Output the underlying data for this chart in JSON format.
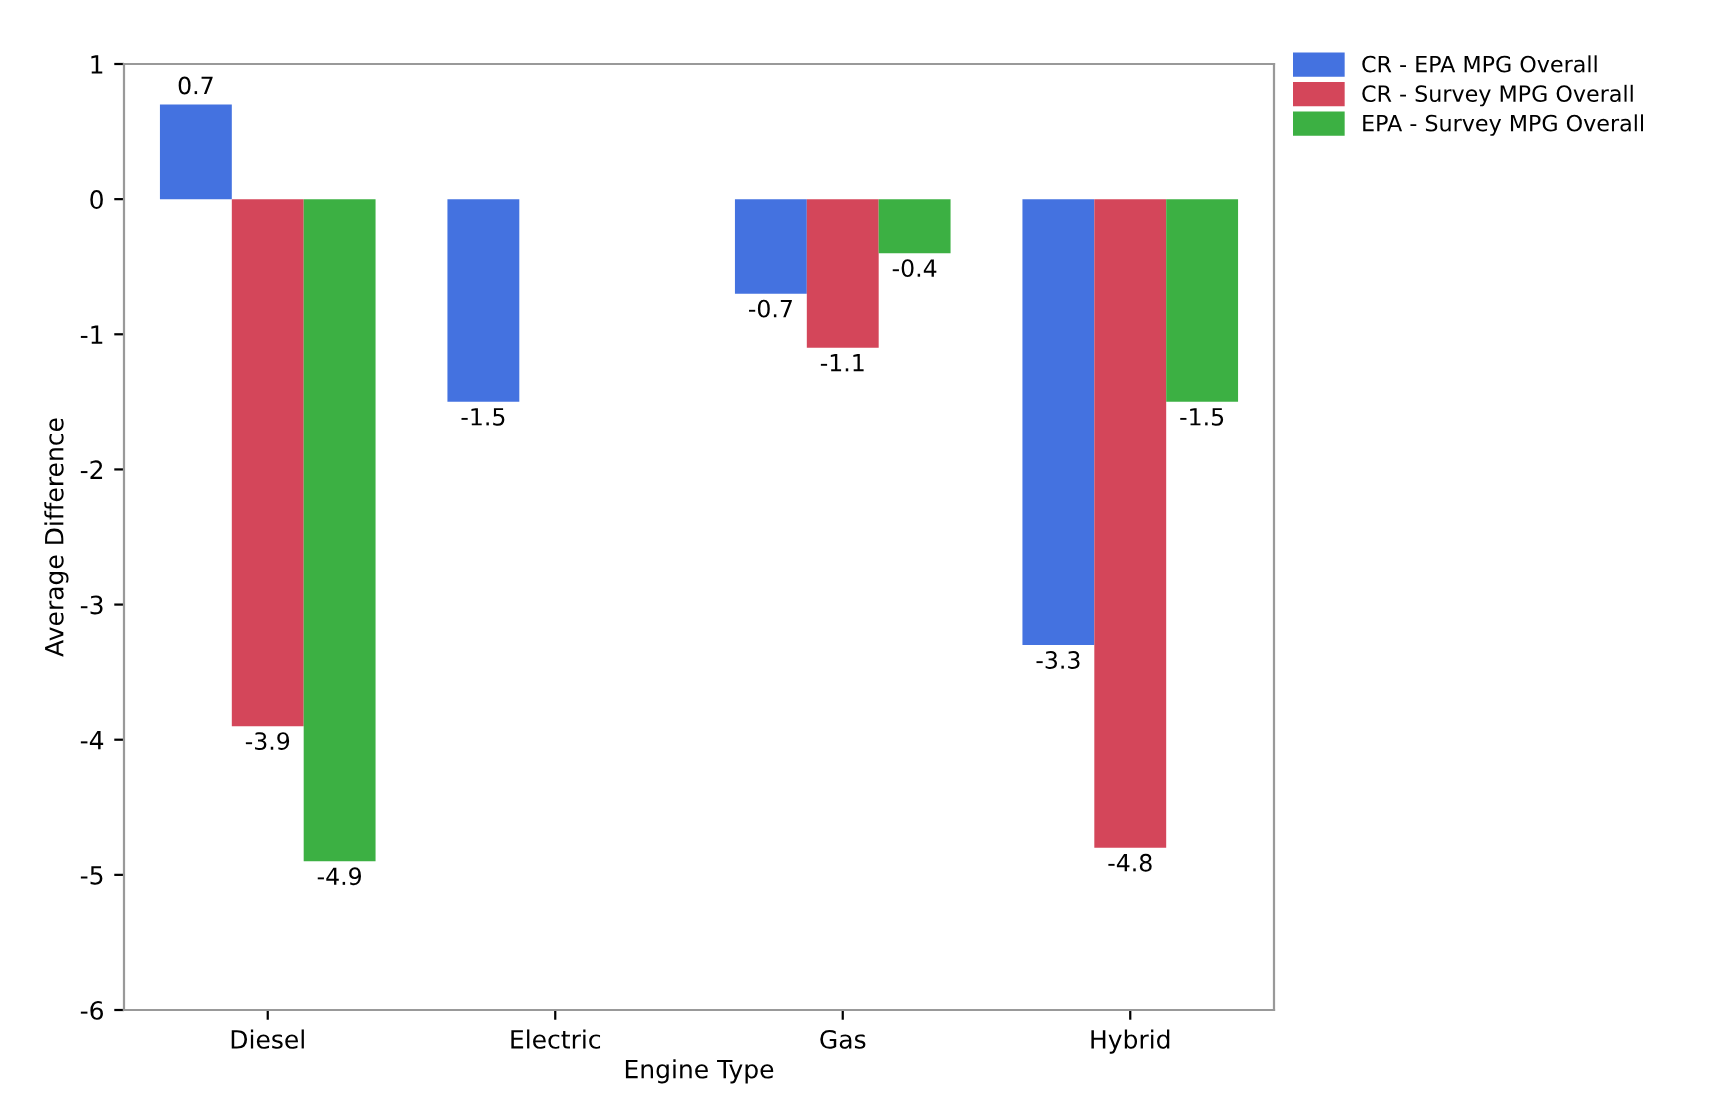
{
  "chart_data": {
    "type": "bar",
    "xlabel": "Engine Type",
    "ylabel": "Average Difference",
    "categories": [
      "Diesel",
      "Electric",
      "Gas",
      "Hybrid"
    ],
    "series": [
      {
        "name": "CR - EPA MPG Overall",
        "color": "#4472e0",
        "values": [
          0.7,
          -1.5,
          -0.7,
          -3.3
        ]
      },
      {
        "name": "CR - Survey MPG Overall",
        "color": "#d4465a",
        "values": [
          -3.9,
          null,
          -1.1,
          -4.8
        ]
      },
      {
        "name": "EPA - Survey MPG Overall",
        "color": "#3cb043",
        "values": [
          -4.9,
          null,
          -0.4,
          -1.5
        ]
      }
    ],
    "ylim": [
      -6,
      1
    ],
    "yticks": [
      -6,
      -5,
      -4,
      -3,
      -2,
      -1,
      0,
      1
    ],
    "grid": false,
    "legend": "top right",
    "data_labels": true
  }
}
